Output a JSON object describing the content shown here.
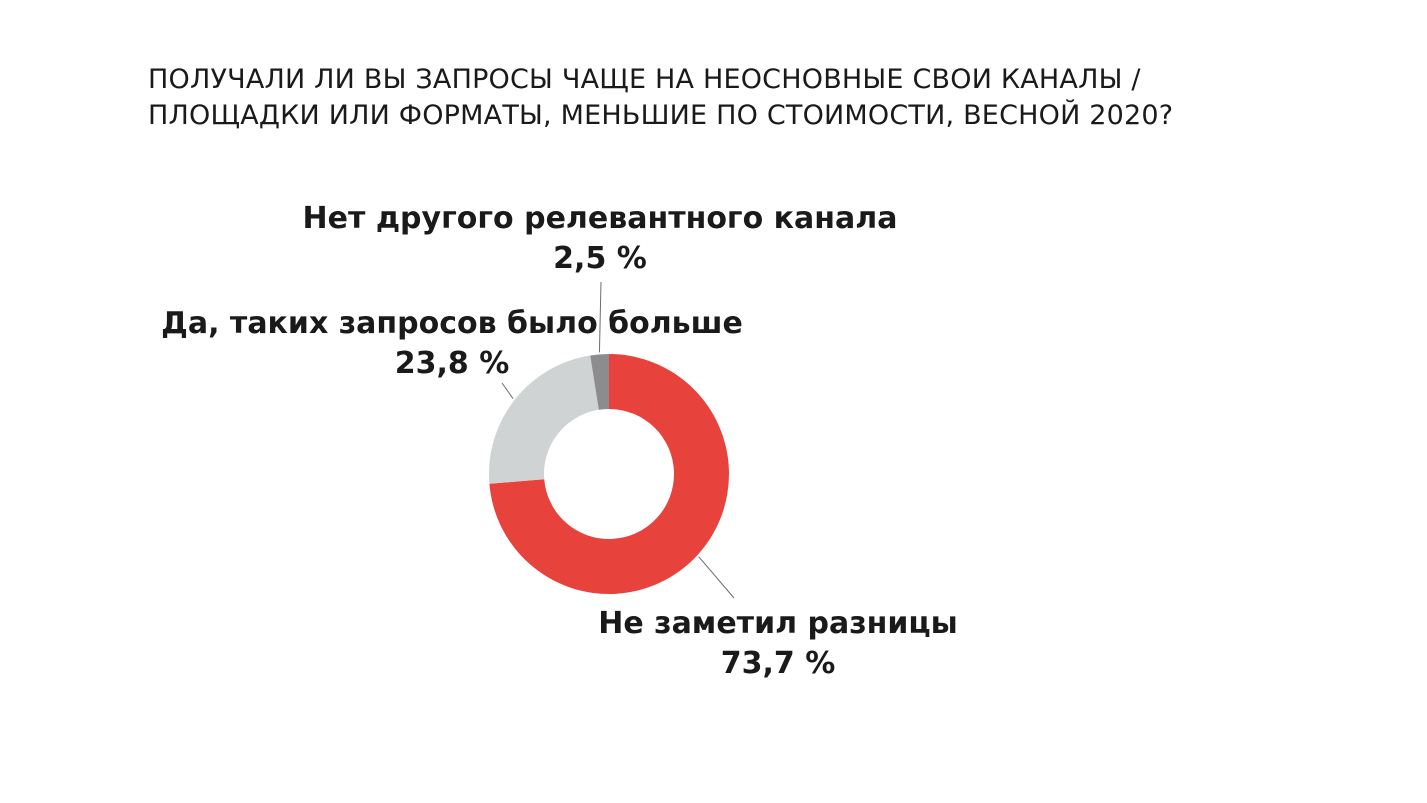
{
  "title_lines": [
    "ПОЛУЧАЛИ ЛИ ВЫ ЗАПРОСЫ ЧАЩЕ НА НЕОСНОВНЫЕ СВОИ КАНАЛЫ /",
    "ПЛОЩАДКИ ИЛИ ФОРМАТЫ, МЕНЬШИЕ ПО СТОИМОСТИ, ВЕСНОЙ 2020?"
  ],
  "chart_data": {
    "type": "pie",
    "variant": "donut",
    "title": "ПОЛУЧАЛИ ЛИ ВЫ ЗАПРОСЫ ЧАЩЕ НА НЕОСНОВНЫЕ СВОИ КАНАЛЫ / ПЛОЩАДКИ ИЛИ ФОРМАТЫ, МЕНЬШИЕ ПО СТОИМОСТИ, ВЕСНОЙ 2020?",
    "slices": [
      {
        "label": "Не заметил разницы",
        "value": 73.7,
        "value_label": "73,7 %",
        "color": "#e8423d"
      },
      {
        "label": "Да, таких запросов было больше",
        "value": 23.8,
        "value_label": "23,8 %",
        "color": "#cfd3d3"
      },
      {
        "label": "Нет другого релевантного канала",
        "value": 2.5,
        "value_label": "2,5 %",
        "color": "#8c8c8e"
      }
    ],
    "start_angle": "12 o'clock, clockwise",
    "legend": "none (direct labels)"
  }
}
